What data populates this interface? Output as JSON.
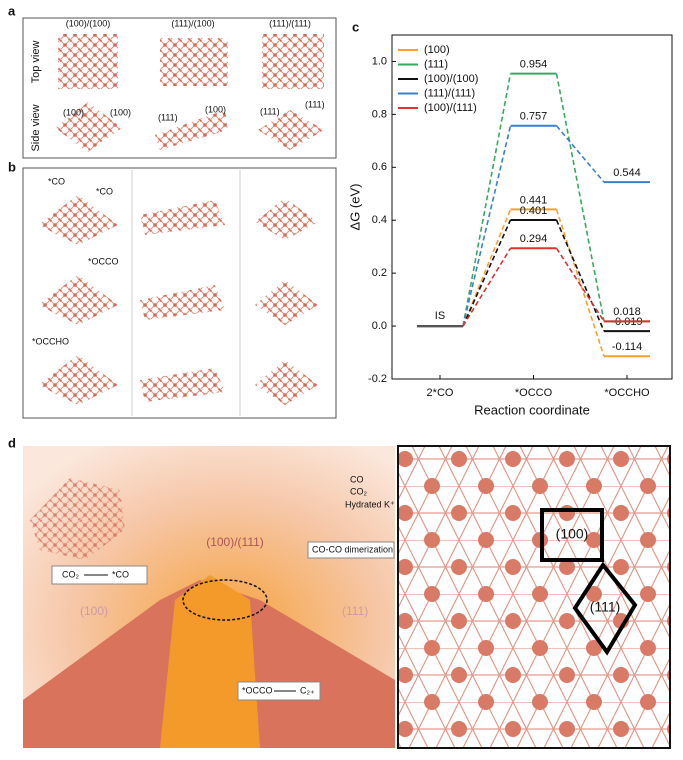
{
  "panel_labels": [
    "a",
    "b",
    "c",
    "d"
  ],
  "panel_a": {
    "columns": [
      "(100)/(100)",
      "(111)/(100)",
      "(111)/(111)"
    ],
    "rows": [
      "Top view",
      "Side view"
    ],
    "facet_labels": [
      [
        "(100)",
        "(100)"
      ],
      [
        "(111)",
        "(100)"
      ],
      [
        "(111)",
        "(111)"
      ]
    ]
  },
  "panel_b": {
    "adsorbates": [
      "*CO",
      "*CO",
      "*OCCO",
      "*OCCHO"
    ]
  },
  "chart_data": {
    "type": "line",
    "categories": [
      "2*CO",
      "*OCCO",
      "*OCCHO"
    ],
    "x_label": "Reaction coordinate",
    "y_label": "ΔG (eV)",
    "annotations": [
      "IS"
    ],
    "ylim": [
      -0.2,
      1.1
    ],
    "yticks": [
      -0.2,
      {
        "value": 0,
        "label": "0.0"
      },
      0.2,
      0.4,
      0.6,
      0.8,
      {
        "value": 1,
        "label": "1.0"
      }
    ],
    "legend": "upper left",
    "series": [
      {
        "name": "(100)",
        "color": "#f5a030",
        "values": [
          0,
          0.441,
          -0.114
        ],
        "value_labels": [
          null,
          "0.441",
          "-0.114"
        ]
      },
      {
        "name": "(111)",
        "color": "#3aa860",
        "values": [
          0,
          0.954,
          0.018
        ],
        "value_labels": [
          null,
          "0.954",
          null
        ]
      },
      {
        "name": "(100)/(100)",
        "color": "#111111",
        "values": [
          0,
          0.401,
          -0.019
        ],
        "value_labels": [
          null,
          "0.401",
          "-0.019"
        ]
      },
      {
        "name": "(111)/(111)",
        "color": "#3b7fd0",
        "values": [
          0,
          0.757,
          0.544
        ],
        "value_labels": [
          null,
          "0.757",
          "0.544"
        ]
      },
      {
        "name": "(100)/(111)",
        "color": "#e03030",
        "values": [
          0,
          0.294,
          0.018
        ],
        "value_labels": [
          null,
          "0.294",
          "0.018"
        ]
      }
    ]
  },
  "panel_d": {
    "surface_label": "(100)/(111)",
    "legend": [
      "CO",
      "CO₂",
      "Hydrated K⁺"
    ],
    "steps": [
      "CO₂",
      "*CO",
      "CO-CO dimerization",
      "*OCCO",
      "C₂₊"
    ],
    "facets": [
      "(100)",
      "(111)"
    ],
    "zoom_labels": [
      "(100)",
      "(111)"
    ]
  }
}
